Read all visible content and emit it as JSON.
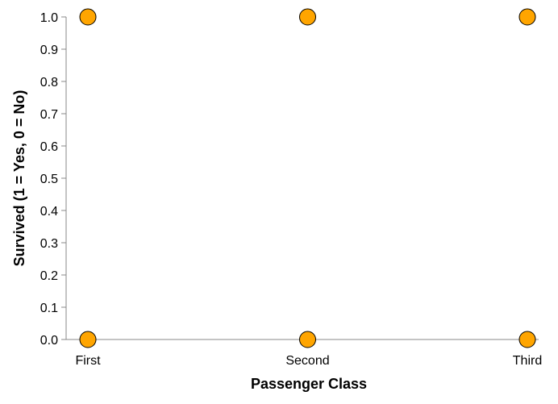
{
  "chart_data": {
    "type": "scatter",
    "title": "",
    "xlabel": "Passenger Class",
    "ylabel": "Survived (1 = Yes, 0 = No)",
    "categories": [
      "First",
      "Second",
      "Third"
    ],
    "y_ticks": [
      "0.0",
      "0.1",
      "0.2",
      "0.3",
      "0.4",
      "0.5",
      "0.6",
      "0.7",
      "0.8",
      "0.9",
      "1.0"
    ],
    "ylim": [
      0,
      1
    ],
    "grid": false,
    "points": [
      {
        "x": "First",
        "y": 1
      },
      {
        "x": "Second",
        "y": 1
      },
      {
        "x": "Third",
        "y": 1
      },
      {
        "x": "First",
        "y": 0
      },
      {
        "x": "Second",
        "y": 0
      },
      {
        "x": "Third",
        "y": 0
      }
    ],
    "colors": {
      "point_fill": "#FFA500",
      "point_stroke": "#000000",
      "axis": "#888888"
    }
  }
}
